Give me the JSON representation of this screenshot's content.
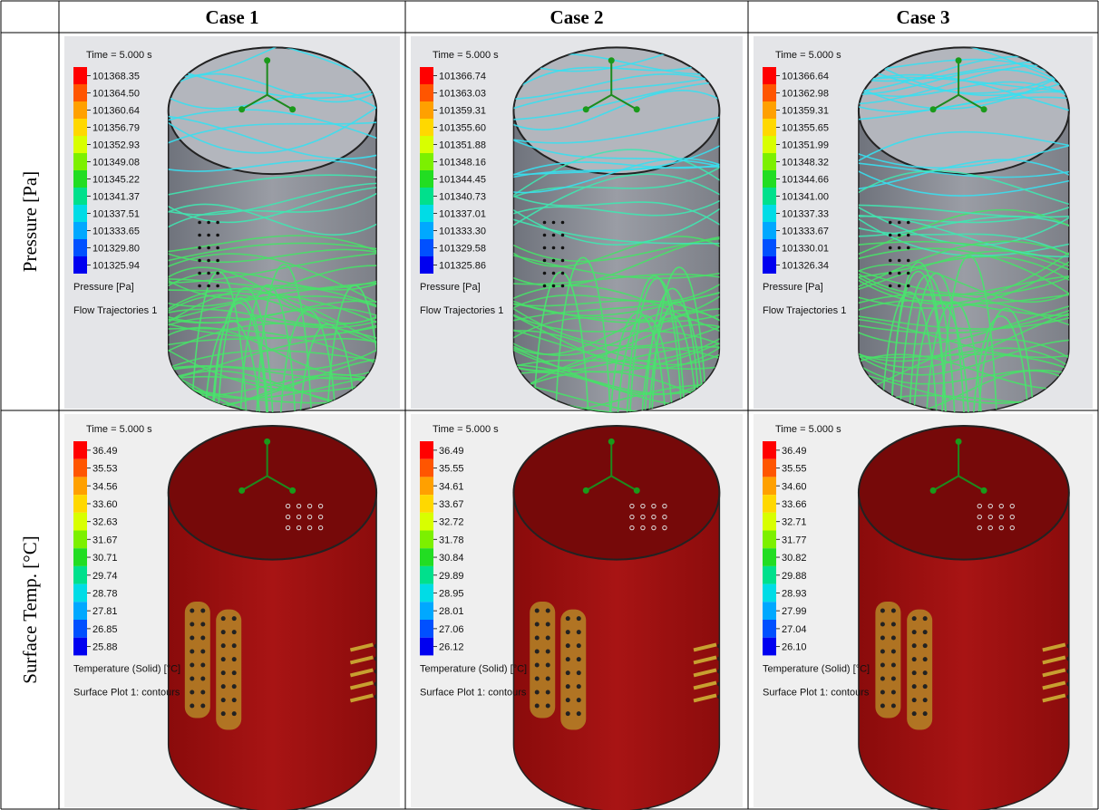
{
  "table": {
    "header": [
      "Case 1",
      "Case 2",
      "Case 3"
    ],
    "rows": [
      {
        "label": "Pressure [Pa]",
        "cells": [
          {
            "time": "Time = 5.000 s",
            "legend": [
              "101368.35",
              "101364.50",
              "101360.64",
              "101356.79",
              "101352.93",
              "101349.08",
              "101345.22",
              "101341.37",
              "101337.51",
              "101333.65",
              "101329.80",
              "101325.94"
            ],
            "quantity": "Pressure [Pa]",
            "plot": "Flow Trajectories 1"
          },
          {
            "time": "Time = 5.000 s",
            "legend": [
              "101366.74",
              "101363.03",
              "101359.31",
              "101355.60",
              "101351.88",
              "101348.16",
              "101344.45",
              "101340.73",
              "101337.01",
              "101333.30",
              "101329.58",
              "101325.86"
            ],
            "quantity": "Pressure [Pa]",
            "plot": "Flow Trajectories 1"
          },
          {
            "time": "Time = 5.000 s",
            "legend": [
              "101366.64",
              "101362.98",
              "101359.31",
              "101355.65",
              "101351.99",
              "101348.32",
              "101344.66",
              "101341.00",
              "101337.33",
              "101333.67",
              "101330.01",
              "101326.34"
            ],
            "quantity": "Pressure [Pa]",
            "plot": "Flow Trajectories 1"
          }
        ]
      },
      {
        "label": "Surface Temp. [°C]",
        "cells": [
          {
            "time": "Time = 5.000 s",
            "legend": [
              "36.49",
              "35.53",
              "34.56",
              "33.60",
              "32.63",
              "31.67",
              "30.71",
              "29.74",
              "28.78",
              "27.81",
              "26.85",
              "25.88"
            ],
            "quantity": "Temperature (Solid) [°C]",
            "plot": "Surface Plot 1: contours"
          },
          {
            "time": "Time = 5.000 s",
            "legend": [
              "36.49",
              "35.55",
              "34.61",
              "33.67",
              "32.72",
              "31.78",
              "30.84",
              "29.89",
              "28.95",
              "28.01",
              "27.06",
              "26.12"
            ],
            "quantity": "Temperature (Solid) [°C]",
            "plot": "Surface Plot 1: contours"
          },
          {
            "time": "Time = 5.000 s",
            "legend": [
              "36.49",
              "35.55",
              "34.60",
              "33.66",
              "32.71",
              "31.77",
              "30.82",
              "29.88",
              "28.93",
              "27.99",
              "27.04",
              "26.10"
            ],
            "quantity": "Temperature (Solid) [°C]",
            "plot": "Surface Plot 1: contours"
          }
        ]
      }
    ]
  }
}
